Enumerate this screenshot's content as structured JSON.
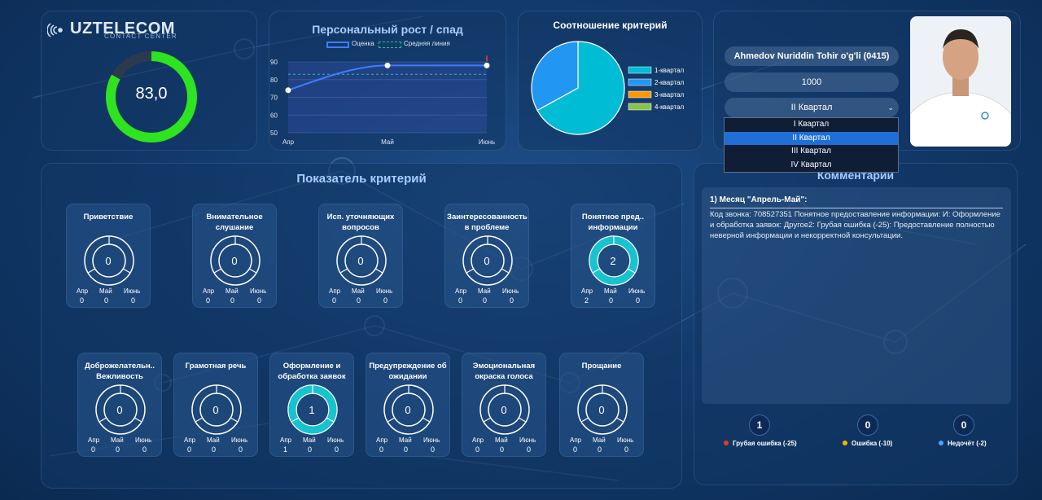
{
  "brand": {
    "name": "UZTELECOM",
    "sub": "CONTACT CENTER"
  },
  "score": {
    "value": "83,0",
    "fraction": 0.83,
    "color": "#2ee31f"
  },
  "growth_chart": {
    "title": "Персональный рост / спад",
    "legend_score": "Оценка",
    "legend_avg": "Средняя линия"
  },
  "ratio_chart": {
    "title": "Соотношение критерий"
  },
  "chart_data": [
    {
      "type": "line",
      "title": "Персональный рост / спад",
      "categories": [
        "Апр",
        "Май",
        "Июнь"
      ],
      "series": [
        {
          "name": "Оценка",
          "values": [
            74,
            88,
            88
          ]
        },
        {
          "name": "Средняя линия",
          "values": [
            83,
            83,
            83
          ]
        }
      ],
      "ylim": [
        50,
        90
      ],
      "yticks": [
        50,
        60,
        70,
        80,
        90
      ]
    },
    {
      "type": "pie",
      "title": "Соотношение критерий",
      "labels": [
        "1-квартал",
        "2-квартал",
        "3-квартал",
        "4-квартал"
      ],
      "values": [
        67,
        33,
        0,
        0
      ],
      "colors": [
        "#00bcd4",
        "#2196f3",
        "#ff9800",
        "#8bc34a"
      ]
    }
  ],
  "profile": {
    "name": "Ahmedov Nuriddin Tohir o'g'li (0415)",
    "code": "1000",
    "quarter_selected": "II Квартал",
    "quarter_options": [
      "I Квартал",
      "II Квартал",
      "III Квартал",
      "IV Квартал"
    ]
  },
  "criteria": {
    "title": "Показатель критерий",
    "month_labels": [
      "Апр",
      "Май",
      "Июнь"
    ],
    "cards": [
      {
        "title": "Приветствие",
        "value": "0",
        "fraction": 0,
        "months": [
          "0",
          "0",
          "0"
        ]
      },
      {
        "title": "Внимательное слушание",
        "value": "0",
        "fraction": 0,
        "months": [
          "0",
          "0",
          "0"
        ]
      },
      {
        "title": "Исп. уточняющих вопросов",
        "value": "0",
        "fraction": 0,
        "months": [
          "0",
          "0",
          "0"
        ]
      },
      {
        "title": "Заинтересованность в проблеме",
        "value": "0",
        "fraction": 0,
        "months": [
          "0",
          "0",
          "0"
        ]
      },
      {
        "title": "Понятное пред.. информации",
        "value": "2",
        "fraction": 1,
        "months": [
          "2",
          "0",
          "0"
        ]
      },
      {
        "title": "Доброжелательн.. Вежливость",
        "value": "0",
        "fraction": 0,
        "months": [
          "0",
          "0",
          "0"
        ]
      },
      {
        "title": "Грамотная речь",
        "value": "0",
        "fraction": 0,
        "months": [
          "0",
          "0",
          "0"
        ]
      },
      {
        "title": "Оформление и обработка заявок",
        "value": "1",
        "fraction": 1,
        "months": [
          "1",
          "0",
          "0"
        ]
      },
      {
        "title": "Предупреждение об ожидании",
        "value": "0",
        "fraction": 0,
        "months": [
          "0",
          "0",
          "0"
        ]
      },
      {
        "title": "Эмоциональная окраска голоса",
        "value": "0",
        "fraction": 0,
        "months": [
          "0",
          "0",
          "0"
        ]
      },
      {
        "title": "Прощание",
        "value": "0",
        "fraction": 0,
        "months": [
          "0",
          "0",
          "0"
        ]
      }
    ]
  },
  "comments": {
    "title": "Комментарии",
    "heading": "1) Месяц \"Апрель-Май\":",
    "text": "Код звонка: 708527351 Понятное предоставление информации: И: Оформление и обработка заявок: Другое2: Грубая ошибка (-25): Предоставление полностью неверной информации и некорректной консультации."
  },
  "errors": [
    {
      "count": "1",
      "label": "Грубая ошибка (-25)",
      "color": "#e53935"
    },
    {
      "count": "0",
      "label": "Ошибка (-10)",
      "color": "#f5b800"
    },
    {
      "count": "0",
      "label": "Недочёт (-2)",
      "color": "#4aa3ff"
    }
  ]
}
